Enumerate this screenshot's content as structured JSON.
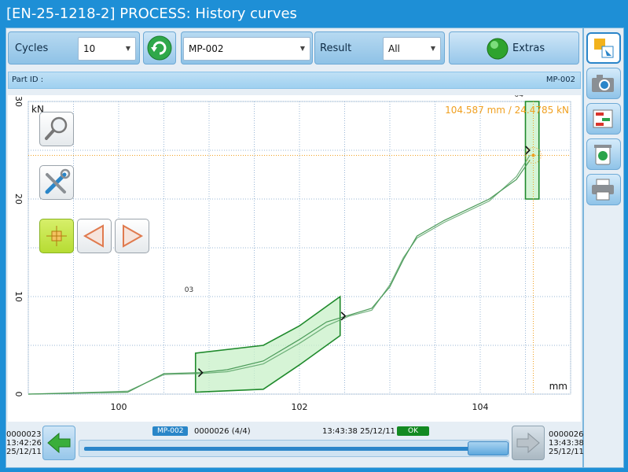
{
  "window": {
    "title": "[EN-25-1218-2] PROCESS: History curves"
  },
  "toolbar": {
    "cycles_label": "Cycles",
    "cycles_value": "10",
    "program_value": "MP-002",
    "result_label": "Result",
    "result_value": "All",
    "extras_label": "Extras"
  },
  "partbar": {
    "label": "Part ID :",
    "value": "MP-002"
  },
  "chart_data": {
    "type": "line",
    "xlabel": "mm",
    "ylabel": "kN",
    "xlim": [
      99.0,
      105.0
    ],
    "ylim": [
      0,
      30
    ],
    "xticks": [
      100,
      102,
      104
    ],
    "yticks": [
      0,
      10,
      20,
      30
    ],
    "grid": true,
    "cursor_readout": "104.587 mm / 24.4785 kN",
    "cursor": {
      "x": 104.587,
      "y": 24.4785
    },
    "series": [
      {
        "x": [
          99.0,
          100.1,
          100.5,
          100.9,
          101.2,
          101.6,
          102.0,
          102.3,
          102.55,
          102.8,
          103.0,
          103.15,
          103.3,
          103.6,
          104.1,
          104.4,
          104.55
        ],
        "y": [
          0.0,
          0.2,
          2.1,
          2.2,
          2.5,
          3.4,
          5.6,
          7.4,
          8.1,
          8.8,
          11.0,
          13.8,
          16.2,
          17.8,
          20.0,
          22.0,
          24.0
        ]
      },
      {
        "x": [
          99.0,
          100.1,
          100.5,
          100.9,
          101.2,
          101.6,
          102.0,
          102.3,
          102.55,
          102.8,
          103.0,
          103.15,
          103.3,
          103.6,
          104.1,
          104.4,
          104.55
        ],
        "y": [
          0.0,
          0.3,
          2.0,
          2.1,
          2.3,
          3.1,
          5.2,
          7.0,
          8.0,
          8.6,
          11.2,
          14.0,
          16.0,
          17.6,
          19.8,
          22.3,
          24.5
        ]
      }
    ],
    "envelopes": [
      {
        "label": "03",
        "x": [
          100.85,
          101.6,
          102.0,
          102.45,
          102.45,
          102.0,
          101.6,
          100.85
        ],
        "y": [
          4.2,
          5.0,
          7.0,
          10.0,
          6.0,
          3.0,
          0.5,
          0.2
        ]
      },
      {
        "label": "04",
        "x": [
          104.5,
          104.65,
          104.65,
          104.5
        ],
        "y": [
          30.0,
          30.0,
          20.0,
          20.0
        ]
      }
    ],
    "markers": [
      {
        "x": 100.9,
        "y": 2.2
      },
      {
        "x": 102.48,
        "y": 8.0
      },
      {
        "x": 104.52,
        "y": 25.0
      }
    ],
    "colors": {
      "curve": "#4a9a58",
      "envelope_stroke": "#1f8a2c",
      "envelope_fill": "#c8f0c8",
      "cursor": "#f0a020",
      "grid": "#9ab7d6"
    }
  },
  "bottom": {
    "left_id": "0000023",
    "left_time": "13:42:26",
    "left_date": "25/12/11",
    "program_badge": "MP-002",
    "cycle_info": "0000026 (4/4)",
    "center_time": "13:43:38",
    "center_date": "25/12/11",
    "result_badge": "OK",
    "right_id": "0000026",
    "right_time": "13:43:38",
    "right_date": "25/12/11"
  },
  "icons": {
    "refresh": "refresh-icon",
    "zoom": "magnifier-icon",
    "settings": "tools-icon",
    "cursor": "cursor-icon",
    "prev": "triangle-left-icon",
    "next": "triangle-right-icon",
    "camera": "camera-icon",
    "compare": "compare-icon",
    "trash": "trash-icon",
    "print": "printer-icon"
  }
}
